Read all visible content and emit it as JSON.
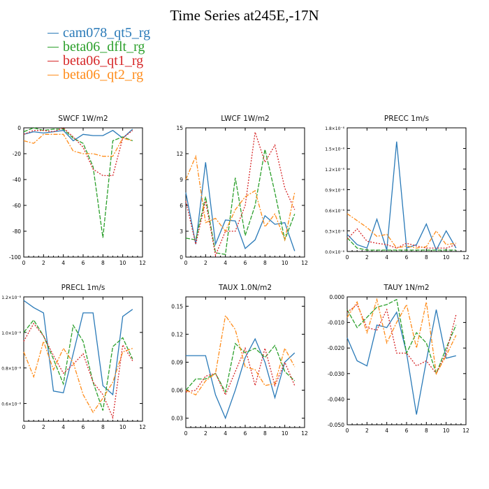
{
  "title": "Time Series at245E,-17N",
  "legend": [
    {
      "name": "cam078_qt5_rg",
      "color": "#2a7ab8"
    },
    {
      "name": "beta06_dflt_rg",
      "color": "#2ca02c"
    },
    {
      "name": "beta06_qt1_rg",
      "color": "#d62728"
    },
    {
      "name": "beta06_qt2_rg",
      "color": "#ff8c1a"
    }
  ],
  "chart_data": [
    {
      "type": "line",
      "title": "SWCF   1W/m2",
      "x": [
        0,
        1,
        2,
        3,
        4,
        5,
        6,
        7,
        8,
        9,
        10,
        11
      ],
      "xlim": [
        0,
        12
      ],
      "xticks": [
        "0",
        "2",
        "4",
        "6",
        "8",
        "10",
        "12"
      ],
      "ylim": [
        -100,
        0
      ],
      "yticks": [
        {
          "v": 0,
          "label": "0"
        },
        {
          "v": -20,
          "label": "-20"
        },
        {
          "v": -40,
          "label": "-40"
        },
        {
          "v": -60,
          "label": "-60"
        },
        {
          "v": -80,
          "label": "-80"
        },
        {
          "v": -100,
          "label": "-100"
        }
      ],
      "series": [
        {
          "name": "cam078_qt5_rg",
          "values": [
            -5,
            -3,
            -4,
            -3,
            -2,
            -10,
            -5,
            -6,
            -6,
            -2,
            -8,
            -1
          ]
        },
        {
          "name": "beta06_dflt_rg",
          "values": [
            -3,
            0,
            -2,
            -1,
            -1,
            -8,
            -12,
            -30,
            -85,
            -10,
            -7,
            -10
          ]
        },
        {
          "name": "beta06_qt1_rg",
          "values": [
            -5,
            -2,
            -2,
            -3,
            0,
            -7,
            -15,
            -32,
            -37,
            -37,
            -8,
            -2
          ]
        },
        {
          "name": "beta06_qt2_rg",
          "values": [
            -10,
            -12,
            -5,
            -5,
            -5,
            -18,
            -20,
            -20,
            -22,
            -22,
            -8,
            -10
          ]
        }
      ]
    },
    {
      "type": "line",
      "title": "LWCF   1W/m2",
      "x": [
        0,
        1,
        2,
        3,
        4,
        5,
        6,
        7,
        8,
        9,
        10,
        11
      ],
      "xlim": [
        0,
        12
      ],
      "xticks": [
        "0",
        "2",
        "4",
        "6",
        "8",
        "10",
        "12"
      ],
      "ylim": [
        0,
        15
      ],
      "yticks": [
        {
          "v": 0,
          "label": "0"
        },
        {
          "v": 3,
          "label": "3"
        },
        {
          "v": 6,
          "label": "6"
        },
        {
          "v": 9,
          "label": "9"
        },
        {
          "v": 12,
          "label": "12"
        },
        {
          "v": 15,
          "label": "15"
        }
      ],
      "series": [
        {
          "name": "cam078_qt5_rg",
          "values": [
            7.5,
            1.5,
            11,
            1.5,
            4.3,
            4.2,
            1,
            2,
            4.8,
            3.8,
            4,
            0.7
          ]
        },
        {
          "name": "beta06_dflt_rg",
          "values": [
            2.2,
            2,
            7,
            0.5,
            0.3,
            9.2,
            2.5,
            6,
            12.5,
            7.5,
            2,
            5
          ]
        },
        {
          "name": "beta06_qt1_rg",
          "values": [
            6.5,
            1.5,
            6.5,
            0.2,
            3,
            3,
            6,
            14.5,
            11,
            13,
            8,
            5.5
          ]
        },
        {
          "name": "beta06_qt2_rg",
          "values": [
            9,
            11.7,
            4,
            4.5,
            3,
            5.5,
            7,
            7.7,
            3.5,
            5,
            2,
            7.5
          ]
        }
      ]
    },
    {
      "type": "line",
      "title": "PRECC   1m/s",
      "x": [
        0,
        1,
        2,
        3,
        4,
        5,
        6,
        7,
        8,
        9,
        10,
        11
      ],
      "xlim": [
        0,
        12
      ],
      "xticks": [
        "0",
        "2",
        "4",
        "6",
        "8",
        "10",
        "12"
      ],
      "ylim": [
        0,
        1.8
      ],
      "y_scale_note": "x10^-8",
      "yticks": [
        {
          "v": 0,
          "label": "0.0×10⁻⁸"
        },
        {
          "v": 0.3,
          "label": "0.3×10⁻⁸"
        },
        {
          "v": 0.6,
          "label": "0.6×10⁻⁸"
        },
        {
          "v": 0.9,
          "label": "0.9×10⁻⁸"
        },
        {
          "v": 1.2,
          "label": "1.2×10⁻⁸"
        },
        {
          "v": 1.5,
          "label": "1.5×10⁻⁸"
        },
        {
          "v": 1.8,
          "label": "1.8×10⁻⁸"
        }
      ],
      "series": [
        {
          "name": "cam078_qt5_rg",
          "values": [
            0.25,
            0.1,
            0.05,
            0.47,
            0.02,
            1.6,
            0.05,
            0.1,
            0.4,
            0.02,
            0.3,
            0.05
          ]
        },
        {
          "name": "beta06_dflt_rg",
          "values": [
            0.2,
            0.05,
            0.02,
            0.02,
            0.02,
            0.02,
            0.02,
            0.02,
            0.02,
            0.02,
            0.02,
            0.02
          ]
        },
        {
          "name": "beta06_qt1_rg",
          "values": [
            0.18,
            0.33,
            0.15,
            0.12,
            0.1,
            0.05,
            0.12,
            0.08,
            0.05,
            0.05,
            0.05,
            0.1
          ]
        },
        {
          "name": "beta06_qt2_rg",
          "values": [
            0.55,
            0.45,
            0.35,
            0.22,
            0.25,
            0.05,
            0.08,
            0.05,
            0.07,
            0.3,
            0.1,
            0.12
          ]
        }
      ]
    },
    {
      "type": "line",
      "title": "PRECL   1m/s",
      "x": [
        0,
        1,
        2,
        3,
        4,
        5,
        6,
        7,
        8,
        9,
        10,
        11
      ],
      "xlim": [
        0,
        12
      ],
      "xticks": [
        "0",
        "2",
        "4",
        "6",
        "8",
        "10",
        "12"
      ],
      "ylim": [
        0.5,
        1.2
      ],
      "y_scale_note": "x10^-8",
      "yticks": [
        {
          "v": 1.2,
          "label": "1.2×10⁻⁸"
        },
        {
          "v": 1.0,
          "label": "1.0×10⁻⁸"
        },
        {
          "v": 0.8,
          "label": "0.8×10⁻⁸"
        },
        {
          "v": 0.6,
          "label": "0.6×10⁻⁸"
        }
      ],
      "series": [
        {
          "name": "cam078_qt5_rg",
          "values": [
            1.18,
            1.14,
            1.11,
            0.67,
            0.66,
            0.88,
            1.11,
            1.11,
            0.7,
            0.65,
            1.09,
            1.13
          ]
        },
        {
          "name": "beta06_dflt_rg",
          "values": [
            1.0,
            1.07,
            0.98,
            0.85,
            0.71,
            1.04,
            0.95,
            0.72,
            0.56,
            0.92,
            0.97,
            0.85
          ]
        },
        {
          "name": "beta06_qt1_rg",
          "values": [
            0.95,
            1.05,
            0.98,
            0.87,
            0.77,
            0.82,
            0.88,
            0.72,
            0.65,
            0.52,
            0.93,
            0.84
          ]
        },
        {
          "name": "beta06_qt2_rg",
          "values": [
            0.89,
            0.75,
            0.95,
            0.79,
            0.91,
            0.83,
            0.65,
            0.55,
            0.63,
            0.72,
            0.89,
            0.91
          ]
        }
      ]
    },
    {
      "type": "line",
      "title": "TAUX   1.0N/m2",
      "x": [
        0,
        1,
        2,
        3,
        4,
        5,
        6,
        7,
        8,
        9,
        10,
        11
      ],
      "xlim": [
        0,
        12
      ],
      "xticks": [
        "0",
        "2",
        "4",
        "6",
        "8",
        "10",
        "12"
      ],
      "ylim": [
        0.02,
        0.16
      ],
      "yticks": [
        {
          "v": 0.15,
          "label": "0.15"
        },
        {
          "v": 0.12,
          "label": "0.12"
        },
        {
          "v": 0.09,
          "label": "0.09"
        },
        {
          "v": 0.06,
          "label": "0.06"
        },
        {
          "v": 0.03,
          "label": "0.03"
        }
      ],
      "series": [
        {
          "name": "cam078_qt5_rg",
          "values": [
            0.097,
            0.097,
            0.097,
            0.055,
            0.03,
            0.06,
            0.095,
            0.115,
            0.09,
            0.052,
            0.09,
            0.1
          ]
        },
        {
          "name": "beta06_dflt_rg",
          "values": [
            0.06,
            0.072,
            0.072,
            0.078,
            0.058,
            0.11,
            0.1,
            0.105,
            0.095,
            0.108,
            0.08,
            0.07
          ]
        },
        {
          "name": "beta06_qt1_rg",
          "values": [
            0.058,
            0.06,
            0.075,
            0.078,
            0.055,
            0.08,
            0.105,
            0.065,
            0.105,
            0.065,
            0.09,
            0.065
          ]
        },
        {
          "name": "beta06_qt2_rg",
          "values": [
            0.06,
            0.055,
            0.07,
            0.078,
            0.14,
            0.125,
            0.085,
            0.082,
            0.065,
            0.067,
            0.105,
            0.085
          ]
        }
      ]
    },
    {
      "type": "line",
      "title": "TAUY   1N/m2",
      "x": [
        0,
        1,
        2,
        3,
        4,
        5,
        6,
        7,
        8,
        9,
        10,
        11
      ],
      "xlim": [
        0,
        12
      ],
      "xticks": [
        "0",
        "2",
        "4",
        "6",
        "8",
        "10",
        "12"
      ],
      "ylim": [
        -0.05,
        0.0
      ],
      "yticks": [
        {
          "v": 0.0,
          "label": "0.000"
        },
        {
          "v": -0.01,
          "label": "-0.010"
        },
        {
          "v": -0.02,
          "label": "-0.020"
        },
        {
          "v": -0.03,
          "label": "-0.030"
        },
        {
          "v": -0.04,
          "label": "-0.040"
        },
        {
          "v": -0.05,
          "label": "-0.050"
        }
      ],
      "series": [
        {
          "name": "cam078_qt5_rg",
          "values": [
            -0.016,
            -0.025,
            -0.027,
            -0.011,
            -0.012,
            -0.006,
            -0.022,
            -0.046,
            -0.025,
            -0.005,
            -0.024,
            -0.023
          ]
        },
        {
          "name": "beta06_dflt_rg",
          "values": [
            -0.005,
            -0.012,
            -0.008,
            -0.004,
            -0.003,
            -0.001,
            -0.022,
            -0.014,
            -0.018,
            -0.03,
            -0.02,
            -0.011
          ]
        },
        {
          "name": "beta06_qt1_rg",
          "values": [
            -0.006,
            -0.003,
            -0.012,
            -0.013,
            -0.005,
            -0.022,
            -0.022,
            -0.027,
            -0.025,
            -0.03,
            -0.022,
            -0.007
          ]
        },
        {
          "name": "beta06_qt2_rg",
          "values": [
            -0.008,
            -0.002,
            -0.014,
            -0.001,
            -0.018,
            -0.01,
            -0.003,
            -0.02,
            -0.002,
            -0.03,
            -0.023,
            -0.015
          ]
        }
      ]
    }
  ]
}
